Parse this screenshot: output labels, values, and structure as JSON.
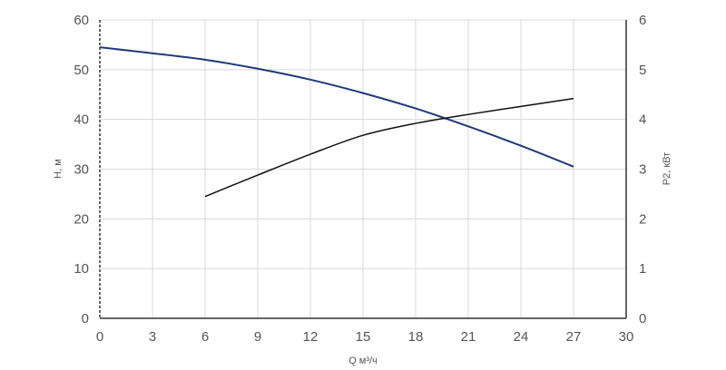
{
  "chart_data": {
    "type": "line",
    "xlabel": "Q м³/ч",
    "ylabel_left": "H, м",
    "ylabel_right": "P2, кВт",
    "xlim": [
      0,
      30
    ],
    "ylim_left": [
      0,
      60
    ],
    "ylim_right": [
      0,
      6
    ],
    "x_ticks": [
      "0",
      "3",
      "6",
      "9",
      "12",
      "15",
      "18",
      "21",
      "24",
      "27",
      "30"
    ],
    "y_left_ticks": [
      "0",
      "10",
      "20",
      "30",
      "40",
      "50",
      "60"
    ],
    "y_right_ticks": [
      "0",
      "1",
      "2",
      "3",
      "4",
      "5",
      "6"
    ],
    "grid": true,
    "series": [
      {
        "axis": "left",
        "color": "#1f3a7a",
        "x": [
          0,
          3,
          6,
          9,
          12,
          15,
          18,
          21,
          24,
          27
        ],
        "values": [
          54.5,
          53.3,
          52.0,
          50.2,
          48.0,
          45.3,
          42.2,
          38.6,
          34.7,
          30.5
        ]
      },
      {
        "axis": "right",
        "color": "#111111",
        "x": [
          6,
          9,
          12,
          15,
          18,
          21,
          24,
          27
        ],
        "values": [
          2.45,
          2.88,
          3.3,
          3.68,
          3.92,
          4.1,
          4.26,
          4.42
        ]
      }
    ]
  }
}
